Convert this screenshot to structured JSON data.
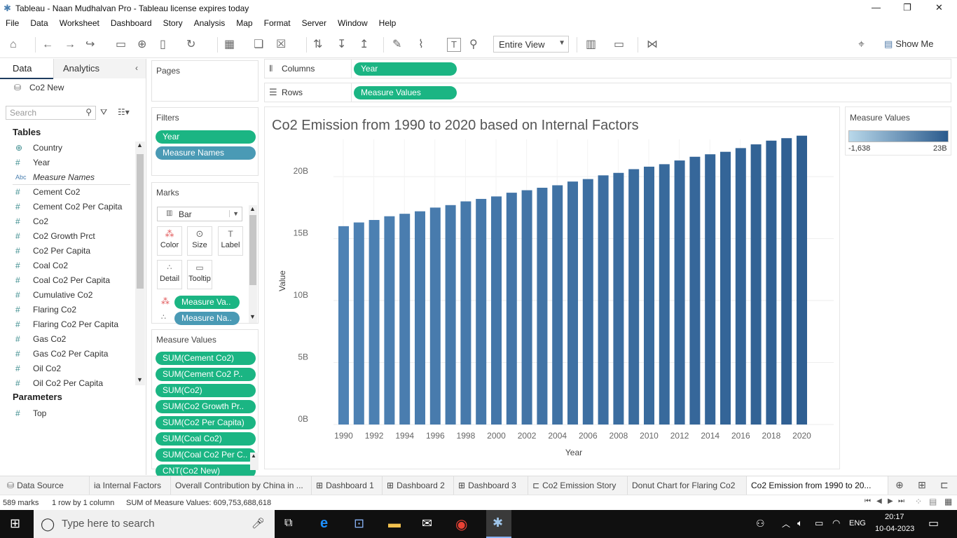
{
  "window": {
    "title": "Tableau - Naan Mudhalvan Pro - Tableau license expires today"
  },
  "menu": [
    "File",
    "Data",
    "Worksheet",
    "Dashboard",
    "Story",
    "Analysis",
    "Map",
    "Format",
    "Server",
    "Window",
    "Help"
  ],
  "toolbar": {
    "view_mode": "Entire View",
    "show_me": "Show Me"
  },
  "data_pane": {
    "tabs": [
      "Data",
      "Analytics"
    ],
    "datasource": "Co2 New",
    "search_placeholder": "Search",
    "tables_header": "Tables",
    "fields": [
      {
        "icon": "globe",
        "label": "Country"
      },
      {
        "icon": "#",
        "label": "Year"
      },
      {
        "icon": "Abc",
        "label": "Measure Names"
      },
      {
        "icon": "#",
        "label": "Cement Co2"
      },
      {
        "icon": "#",
        "label": "Cement Co2 Per Capita"
      },
      {
        "icon": "#",
        "label": "Co2"
      },
      {
        "icon": "#",
        "label": "Co2 Growth Prct"
      },
      {
        "icon": "#",
        "label": "Co2 Per Capita"
      },
      {
        "icon": "#",
        "label": "Coal Co2"
      },
      {
        "icon": "#",
        "label": "Coal Co2 Per Capita"
      },
      {
        "icon": "#",
        "label": "Cumulative Co2"
      },
      {
        "icon": "#",
        "label": "Flaring Co2"
      },
      {
        "icon": "#",
        "label": "Flaring Co2 Per Capita"
      },
      {
        "icon": "#",
        "label": "Gas Co2"
      },
      {
        "icon": "#",
        "label": "Gas Co2 Per Capita"
      },
      {
        "icon": "#",
        "label": "Oil Co2"
      },
      {
        "icon": "#",
        "label": "Oil Co2 Per Capita"
      }
    ],
    "parameters_header": "Parameters",
    "parameters": [
      {
        "icon": "#",
        "label": "Top"
      }
    ]
  },
  "cards": {
    "pages": "Pages",
    "filters": "Filters",
    "filter_pills": [
      "Year",
      "Measure Names"
    ],
    "marks": "Marks",
    "mark_type": "Bar",
    "mark_buttons": [
      "Color",
      "Size",
      "Label",
      "Detail",
      "Tooltip"
    ],
    "mark_pills": [
      "Measure Va..",
      "Measure Na.."
    ],
    "measure_values": "Measure Values",
    "measure_pills": [
      "SUM(Cement Co2)",
      "SUM(Cement Co2 P..",
      "SUM(Co2)",
      "SUM(Co2 Growth Pr..",
      "SUM(Co2 Per Capita)",
      "SUM(Coal Co2)",
      "SUM(Coal Co2 Per C..",
      "CNT(Co2 New)"
    ]
  },
  "shelves": {
    "columns_label": "Columns",
    "columns_pill": "Year",
    "rows_label": "Rows",
    "rows_pill": "Measure Values"
  },
  "legend": {
    "title": "Measure Values",
    "min": "-1,638",
    "max": "23B",
    "color_low": "#b9d8ea",
    "color_high": "#2b5b8d"
  },
  "chart_data": {
    "type": "bar",
    "title": "Co2 Emission from 1990 to 2020 based on Internal Factors",
    "xlabel": "Year",
    "ylabel": "Value",
    "x_ticks": [
      "1990",
      "1992",
      "1994",
      "1996",
      "1998",
      "2000",
      "2002",
      "2004",
      "2006",
      "2008",
      "2010",
      "2012",
      "2014",
      "2016",
      "2018",
      "2020"
    ],
    "y_ticks": [
      "0B",
      "5B",
      "10B",
      "15B",
      "20B"
    ],
    "ylim": [
      0,
      23
    ],
    "unit": "B",
    "categories": [
      1990,
      1991,
      1992,
      1993,
      1994,
      1995,
      1996,
      1997,
      1998,
      1999,
      2000,
      2001,
      2002,
      2003,
      2004,
      2005,
      2006,
      2007,
      2008,
      2009,
      2010,
      2011,
      2012,
      2013,
      2014,
      2015,
      2016,
      2017,
      2018,
      2019,
      2020
    ],
    "values": [
      16.0,
      16.3,
      16.5,
      16.8,
      17.0,
      17.2,
      17.5,
      17.7,
      18.0,
      18.2,
      18.4,
      18.7,
      18.9,
      19.1,
      19.3,
      19.6,
      19.8,
      20.1,
      20.3,
      20.6,
      20.8,
      21.0,
      21.3,
      21.6,
      21.8,
      22.0,
      22.3,
      22.6,
      22.9,
      23.1,
      23.3
    ],
    "color_low": "#4e82b4",
    "color_high": "#2f5f92",
    "grid": true
  },
  "sheet_tabs": [
    "Data Source",
    "ia Internal Factors",
    "Overall Contribution by China in ...",
    "Dashboard 1",
    "Dashboard 2",
    "Dashboard 3",
    "Co2 Emission Story",
    "Donut Chart for Flaring Co2",
    "Co2 Emission from 1990 to 20..."
  ],
  "status": {
    "marks": "589 marks",
    "rows_cols": "1 row by 1 column",
    "sum": "SUM of Measure Values: 609,753,688,618"
  },
  "taskbar": {
    "search_placeholder": "Type here to search",
    "lang": "ENG",
    "time": "20:17",
    "date": "10-04-2023"
  }
}
